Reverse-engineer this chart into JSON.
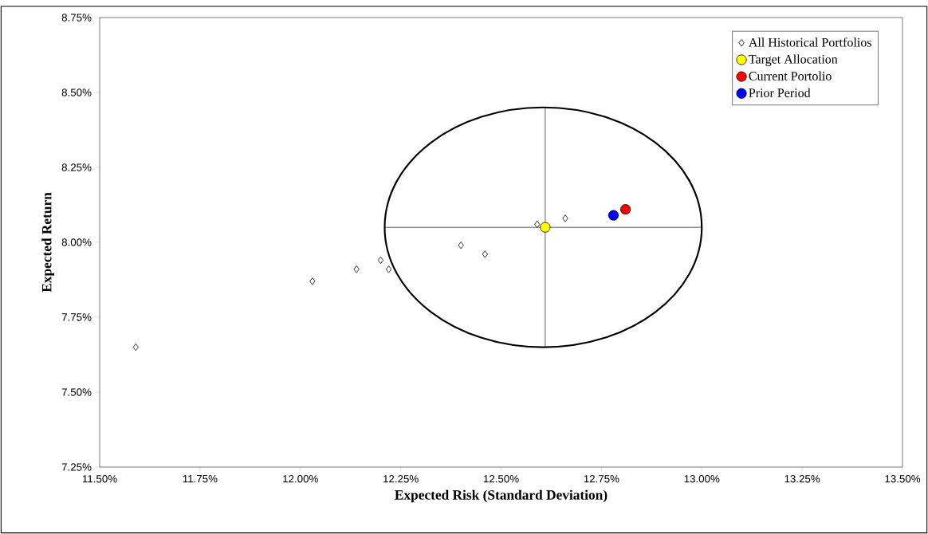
{
  "chart_data": {
    "type": "scatter",
    "xlabel": "Expected Risk (Standard Deviation)",
    "ylabel": "Expected Return",
    "xlim": [
      11.5,
      13.5
    ],
    "ylim": [
      7.25,
      8.75
    ],
    "xticks": [
      {
        "value": 11.5,
        "label": "11.50%"
      },
      {
        "value": 11.75,
        "label": "11.75%"
      },
      {
        "value": 12.0,
        "label": "12.00%"
      },
      {
        "value": 12.25,
        "label": "12.25%"
      },
      {
        "value": 12.5,
        "label": "12.50%"
      },
      {
        "value": 12.75,
        "label": "12.75%"
      },
      {
        "value": 13.0,
        "label": "13.00%"
      },
      {
        "value": 13.25,
        "label": "13.25%"
      },
      {
        "value": 13.5,
        "label": "13.50%"
      }
    ],
    "yticks": [
      {
        "value": 7.25,
        "label": "7.25%"
      },
      {
        "value": 7.5,
        "label": "7.50%"
      },
      {
        "value": 7.75,
        "label": "7.75%"
      },
      {
        "value": 8.0,
        "label": "8.00%"
      },
      {
        "value": 8.25,
        "label": "8.25%"
      },
      {
        "value": 8.5,
        "label": "8.50%"
      },
      {
        "value": 8.75,
        "label": "8.75%"
      }
    ],
    "legend": "top right",
    "series": [
      {
        "type": "line",
        "color": "#555555",
        "x": [
          12.61,
          12.61
        ],
        "values": [
          7.65,
          8.45
        ]
      },
      {
        "type": "line",
        "color": "#555555",
        "x": [
          12.21,
          13.0
        ],
        "values": [
          8.05,
          8.05
        ]
      },
      {
        "name": "All Historical Portfolios",
        "marker": "diamond",
        "color": "#ffffff",
        "x": [
          11.59,
          12.03,
          12.14,
          12.2,
          12.22,
          12.4,
          12.46,
          12.59,
          12.66
        ],
        "values": [
          7.65,
          7.87,
          7.91,
          7.94,
          7.91,
          7.99,
          7.96,
          8.06,
          8.08
        ]
      },
      {
        "name": "Target Allocation",
        "marker": "circle",
        "color": "#ffff00",
        "x": [
          12.61
        ],
        "values": [
          8.05
        ]
      },
      {
        "name": "Current Portolio",
        "marker": "circle",
        "color": "#ff0000",
        "x": [
          12.81
        ],
        "values": [
          8.11
        ]
      },
      {
        "name": "Prior Period",
        "marker": "circle",
        "color": "#0000ff",
        "x": [
          12.78
        ],
        "values": [
          8.09
        ]
      }
    ]
  }
}
